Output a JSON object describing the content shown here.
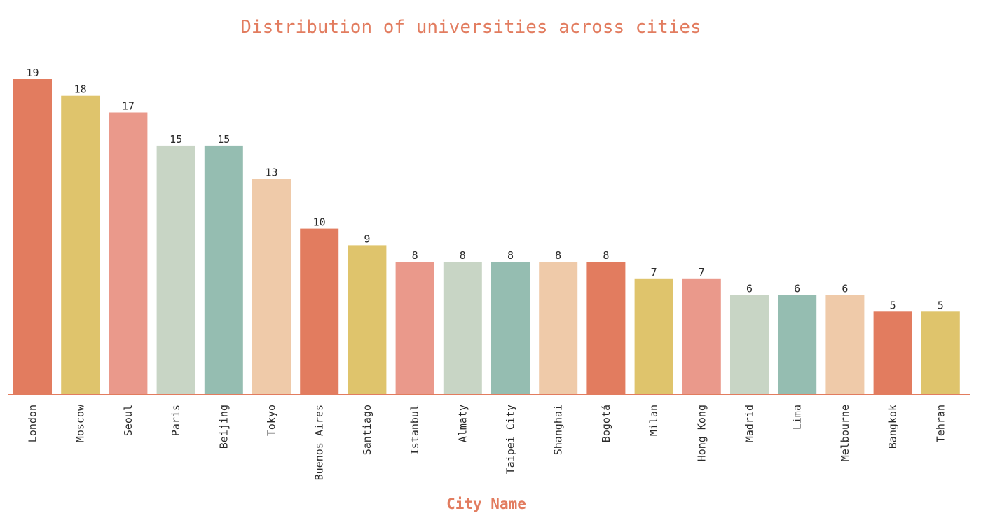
{
  "chart_data": {
    "type": "bar",
    "title": "Distribution of universities across cities",
    "xlabel": "City Name",
    "ylabel": "",
    "categories": [
      "London",
      "Moscow",
      "Seoul",
      "Paris",
      "Beijing",
      "Tokyo",
      "Buenos Aires",
      "Santiago",
      "Istanbul",
      "Almaty",
      "Taipei City",
      "Shanghai",
      "Bogotá",
      "Milan",
      "Hong Kong",
      "Madrid",
      "Lima",
      "Melbourne",
      "Bangkok",
      "Tehran"
    ],
    "values": [
      19,
      18,
      17,
      15,
      15,
      13,
      10,
      9,
      8,
      8,
      8,
      8,
      8,
      7,
      7,
      6,
      6,
      6,
      5,
      5
    ],
    "ylim": [
      0,
      19
    ],
    "grid": false,
    "palette": [
      "#e27c5f",
      "#dfc46c",
      "#ea998b",
      "#c8d5c5",
      "#95bdb1",
      "#efcaa9"
    ],
    "axis_color": "#e27c5f"
  }
}
